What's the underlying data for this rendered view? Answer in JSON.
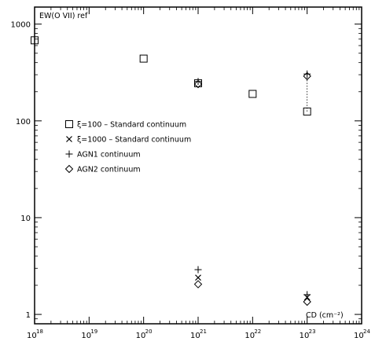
{
  "chart_data": {
    "type": "scatter",
    "title": "",
    "ylabel": "EW(O VII) ref",
    "xlabel": "CD (cm⁻²)",
    "xscale": "log",
    "yscale": "log",
    "xlim": [
      1e+18,
      1e+24
    ],
    "ylim": [
      0.8,
      1500
    ],
    "x_ticks": [
      {
        "base": "10",
        "exp": "18",
        "value": 1e+18
      },
      {
        "base": "10",
        "exp": "19",
        "value": 1e+19
      },
      {
        "base": "10",
        "exp": "20",
        "value": 1e+20
      },
      {
        "base": "10",
        "exp": "21",
        "value": 1e+21
      },
      {
        "base": "10",
        "exp": "22",
        "value": 1e+22
      },
      {
        "base": "10",
        "exp": "23",
        "value": 1e+23
      },
      {
        "base": "10",
        "exp": "24",
        "value": 1e+24
      }
    ],
    "y_ticks": [
      {
        "label": "1",
        "value": 1
      },
      {
        "label": "10",
        "value": 10
      },
      {
        "label": "100",
        "value": 100
      },
      {
        "label": "1000",
        "value": 1000
      }
    ],
    "legend_position": "left-middle",
    "series": [
      {
        "name": "ξ=100 – Standard continuum",
        "marker": "square",
        "x": [
          1e+18,
          1e+20,
          1e+21,
          1e+22,
          1e+23
        ],
        "y": [
          680,
          440,
          245,
          190,
          125
        ]
      },
      {
        "name": "ξ=1000 – Standard continuum",
        "marker": "x",
        "x": [
          1e+21,
          1e+23
        ],
        "y": [
          2.4,
          1.5
        ]
      },
      {
        "name": "AGN1 continuum",
        "marker": "plus",
        "x": [
          1e+21,
          1e+23
        ],
        "y": [
          2.9,
          1.6
        ]
      },
      {
        "name": "AGN2 continuum",
        "marker": "diamond",
        "x": [
          1e+21,
          1e+23
        ],
        "y": [
          2.05,
          1.35
        ]
      }
    ],
    "extra_points": [
      {
        "marker": "plus",
        "x": 1e+21,
        "y": 255
      },
      {
        "marker": "diamond",
        "x": 1e+21,
        "y": 240
      },
      {
        "marker": "plus",
        "x": 1e+23,
        "y": 305
      },
      {
        "marker": "diamond",
        "x": 1e+23,
        "y": 290
      }
    ],
    "connectors": [
      {
        "x": 1e+23,
        "y_from": 125,
        "y_to": 300,
        "style": "dotted"
      }
    ],
    "grid": false
  }
}
